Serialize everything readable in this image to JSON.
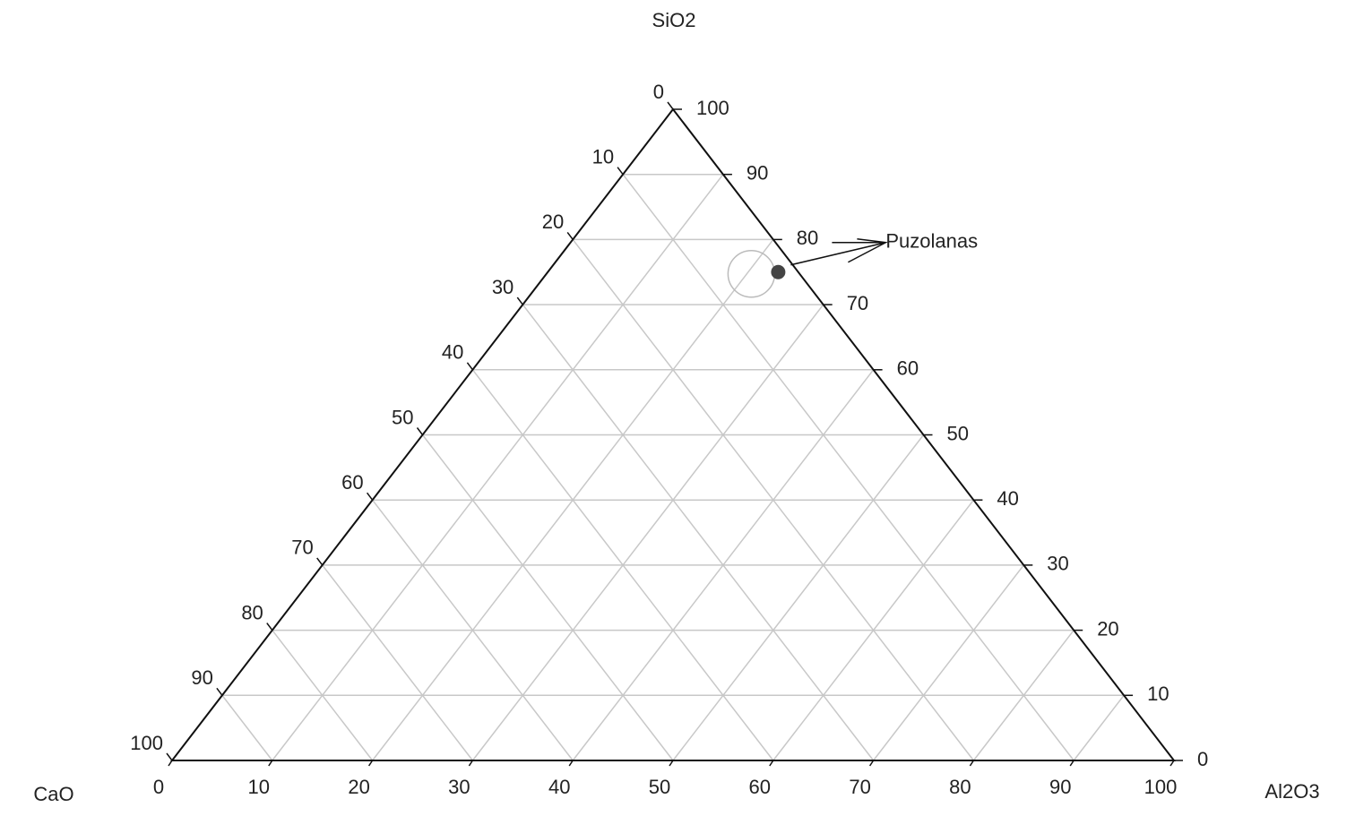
{
  "chart_data": {
    "type": "ternary",
    "axes": [
      {
        "name": "SiO2",
        "ticks": [
          0,
          10,
          20,
          30,
          40,
          50,
          60,
          70,
          80,
          90,
          100
        ]
      },
      {
        "name": "CaO",
        "ticks": [
          0,
          10,
          20,
          30,
          40,
          50,
          60,
          70,
          80,
          90,
          100
        ]
      },
      {
        "name": "Al2O3",
        "ticks": [
          0,
          10,
          20,
          30,
          40,
          50,
          60,
          70,
          80,
          90,
          100
        ]
      }
    ],
    "grid": true,
    "series": [
      {
        "name": "Puzolanas",
        "color": "#444444",
        "SiO2": [
          75
        ],
        "CaO": [
          2
        ],
        "Al2O3": [
          23
        ]
      }
    ]
  }
}
